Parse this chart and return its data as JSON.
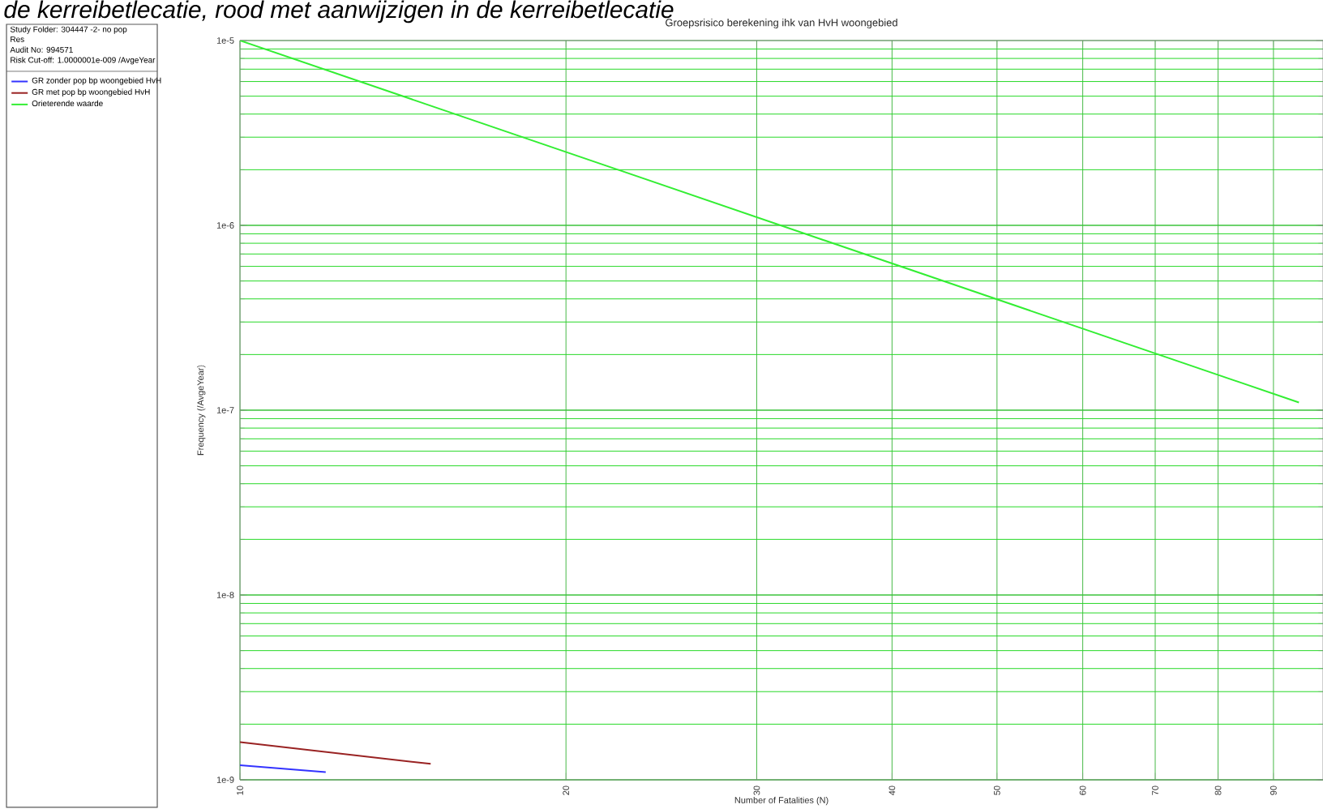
{
  "chart_data": {
    "type": "line",
    "title": "Groepsrisico berekening ihk van HvH woongebied",
    "xlabel": "Number of Fatalities (N)",
    "ylabel": "Frequency (/AvgeYear)",
    "annotations": [
      "de kerreibetlecatie, rood met aanwijzigen in de kerreibetlecatie",
      "Study Folder: 304447 -2- no pop",
      "Res",
      "Audit No: 994571",
      "Risk Cut-off: 1.0000001e-009 /AvgeYear"
    ],
    "log": "xy",
    "xlim": [
      10,
      100
    ],
    "ylim": [
      1e-09,
      1e-05
    ],
    "xticks": [
      10,
      20,
      30,
      40,
      50,
      60,
      70,
      80,
      90
    ],
    "yticks": [
      {
        "value": 1e-09,
        "label": "1e-9"
      },
      {
        "value": 1e-08,
        "label": "1e-8"
      },
      {
        "value": 1e-07,
        "label": "1e-7"
      },
      {
        "value": 1e-06,
        "label": "1e-6"
      },
      {
        "value": 1e-05,
        "label": "1e-5"
      }
    ],
    "grid": true,
    "legend": "left",
    "marker": "none",
    "line_style": "solid",
    "series": [
      {
        "name": "GR zonder pop bp woongebied HvH",
        "color": "#3333ff",
        "x": [
          10,
          12
        ],
        "values": [
          1.2e-09,
          1.1e-09
        ]
      },
      {
        "name": "GR met pop bp woongebied HvH",
        "color": "#992222",
        "x": [
          10,
          15
        ],
        "values": [
          1.6e-09,
          1.22e-09
        ]
      },
      {
        "name": "Orieterende waarde",
        "color": "#33ee33",
        "x": [
          10,
          95
        ],
        "values": [
          1e-05,
          1.1e-07
        ]
      }
    ]
  }
}
